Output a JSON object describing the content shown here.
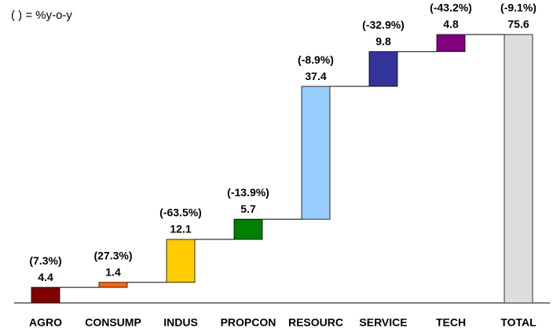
{
  "chart_data": {
    "type": "waterfall",
    "note": "( ) = %y-o-y",
    "categories": [
      "AGRO",
      "CONSUMP",
      "INDUS",
      "PROPCON",
      "RESOURC",
      "SERVICE",
      "TECH",
      "TOTAL"
    ],
    "values": [
      4.4,
      1.4,
      12.1,
      5.7,
      37.4,
      9.8,
      4.8,
      75.6
    ],
    "change_labels": [
      "(7.3%)",
      "(27.3%)",
      "(-63.5%)",
      "(-13.9%)",
      "(-8.9%)",
      "(-32.9%)",
      "(-43.2%)",
      "(-9.1%)"
    ],
    "colors": [
      "#800000",
      "#ff6600",
      "#ffcc00",
      "#008000",
      "#99ccff",
      "#333399",
      "#800080",
      "#dddddd"
    ],
    "last_is_total": true,
    "ylim": [
      0,
      84
    ]
  }
}
